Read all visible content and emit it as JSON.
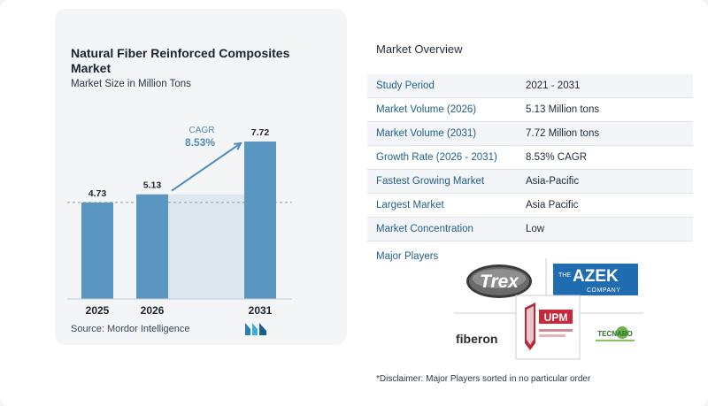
{
  "chart_data": {
    "type": "bar",
    "title": "Natural Fiber Reinforced Composites Market",
    "subtitle": "Market Size in Million Tons",
    "categories": [
      "2025",
      "2026",
      "2031"
    ],
    "values": [
      4.73,
      5.13,
      7.72
    ],
    "value_labels": [
      "4.73",
      "5.13",
      "7.72"
    ],
    "ylim": [
      0,
      8.5
    ],
    "cagr_label": "CAGR",
    "cagr_value": "8.53%",
    "bar_color": "#5b96c0",
    "grid": false
  },
  "source": "Source:  Mordor Intelligence",
  "overview": {
    "title": "Market Overview",
    "rows": [
      {
        "label": "Study Period",
        "value": "2021 - 2031"
      },
      {
        "label": "Market Volume (2026)",
        "value": "5.13 Million tons"
      },
      {
        "label": "Market Volume (2031)",
        "value": "7.72 Million tons"
      },
      {
        "label": "Growth Rate (2026 - 2031)",
        "value": "8.53% CAGR"
      },
      {
        "label": "Fastest Growing Market",
        "value": "Asia-Pacific"
      },
      {
        "label": "Largest Market",
        "value": "Asia Pacific"
      },
      {
        "label": "Market Concentration",
        "value": "Low"
      }
    ]
  },
  "players": {
    "title": "Major Players",
    "logos": {
      "trex": "Trex",
      "azek_the": "THE",
      "azek_main": "AZEK",
      "azek_company": "COMPANY",
      "upm": "UPM",
      "fiberon": "fiberon",
      "tecnaro": "TECNARO"
    }
  },
  "disclaimer": "*Disclaimer: Major Players sorted in no particular order"
}
